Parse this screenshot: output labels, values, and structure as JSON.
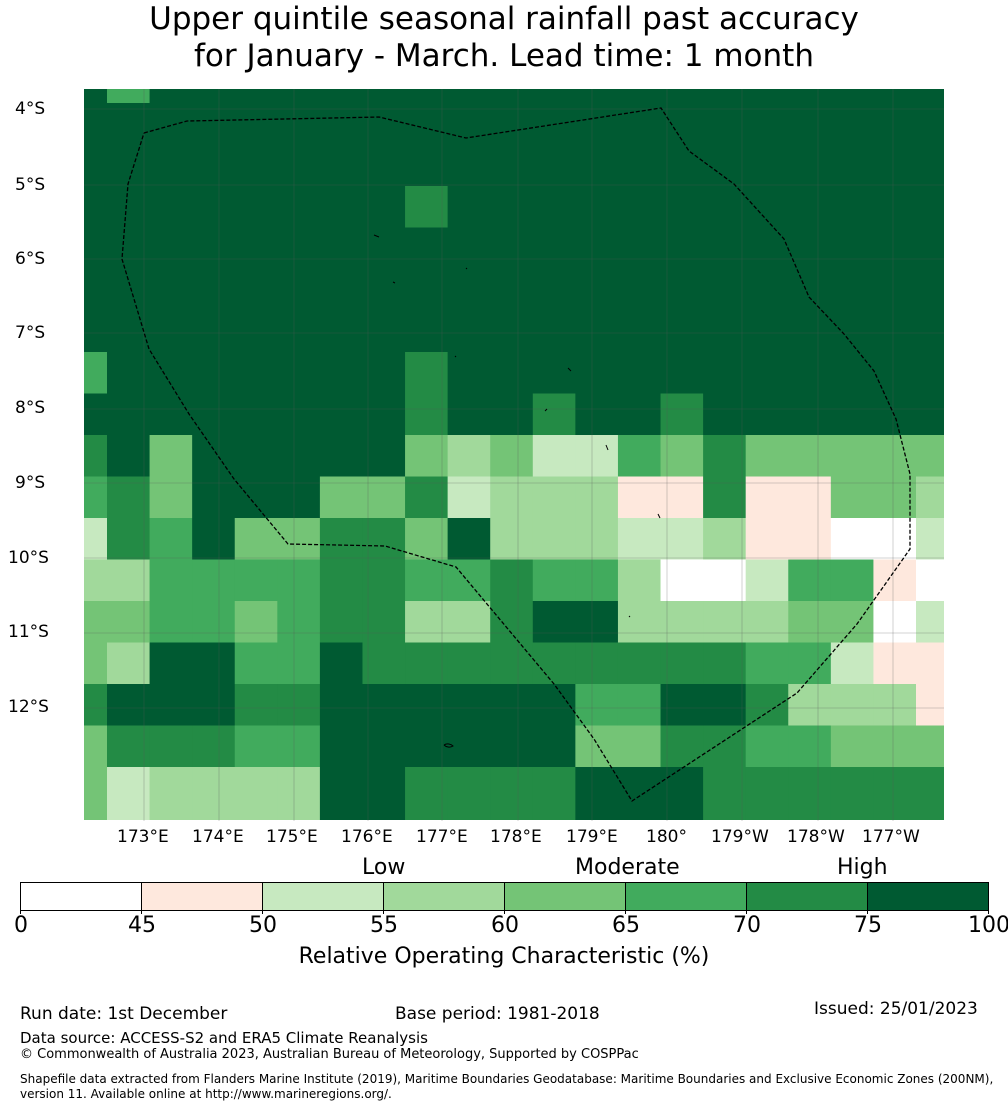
{
  "title_lines": [
    "Upper quintile seasonal rainfall past accuracy",
    "for January - March. Lead time: 1 month"
  ],
  "map": {
    "lat_labels": [
      "4°S",
      "5°S",
      "6°S",
      "7°S",
      "8°S",
      "9°S",
      "10°S",
      "11°S",
      "12°S"
    ],
    "lon_labels": [
      "173°E",
      "174°E",
      "175°E",
      "176°E",
      "177°E",
      "178°E",
      "179°E",
      "180°",
      "179°W",
      "178°W",
      "177°W"
    ],
    "grid_values_pct": [
      [
        77,
        67,
        77,
        77,
        77,
        77,
        77,
        77,
        77,
        77,
        77,
        77,
        77,
        77,
        77,
        77,
        77,
        77,
        77,
        77,
        77
      ],
      [
        77,
        77,
        77,
        77,
        77,
        77,
        77,
        77,
        77,
        77,
        77,
        77,
        77,
        77,
        77,
        77,
        77,
        77,
        77,
        77,
        77
      ],
      [
        77,
        77,
        77,
        77,
        77,
        77,
        77,
        77,
        77,
        77,
        77,
        77,
        77,
        77,
        77,
        77,
        77,
        77,
        77,
        77,
        77
      ],
      [
        77,
        77,
        77,
        77,
        77,
        77,
        77,
        77,
        72,
        77,
        77,
        77,
        77,
        77,
        77,
        77,
        77,
        77,
        77,
        77,
        77
      ],
      [
        77,
        77,
        77,
        77,
        77,
        77,
        77,
        77,
        77,
        77,
        77,
        77,
        77,
        77,
        77,
        77,
        77,
        77,
        77,
        77,
        77
      ],
      [
        77,
        77,
        77,
        77,
        77,
        77,
        77,
        77,
        77,
        77,
        77,
        77,
        77,
        77,
        77,
        77,
        77,
        77,
        77,
        77,
        77
      ],
      [
        77,
        77,
        77,
        77,
        77,
        77,
        77,
        77,
        77,
        77,
        77,
        77,
        77,
        77,
        77,
        77,
        77,
        77,
        77,
        77,
        77
      ],
      [
        67,
        77,
        77,
        77,
        77,
        77,
        77,
        77,
        72,
        77,
        77,
        77,
        77,
        77,
        77,
        77,
        77,
        77,
        77,
        77,
        77
      ],
      [
        77,
        77,
        77,
        77,
        77,
        77,
        77,
        77,
        72,
        77,
        77,
        72,
        77,
        77,
        72,
        77,
        77,
        77,
        77,
        77,
        77
      ],
      [
        72,
        77,
        62,
        77,
        77,
        77,
        77,
        77,
        62,
        57,
        62,
        52,
        52,
        67,
        62,
        72,
        62,
        62,
        62,
        62,
        62
      ],
      [
        67,
        72,
        62,
        77,
        77,
        77,
        62,
        62,
        72,
        52,
        57,
        57,
        57,
        47,
        47,
        72,
        47,
        47,
        62,
        62,
        57
      ],
      [
        52,
        72,
        67,
        77,
        62,
        62,
        72,
        72,
        62,
        77,
        57,
        57,
        57,
        52,
        52,
        57,
        47,
        47,
        42,
        42,
        52
      ],
      [
        57,
        57,
        67,
        67,
        67,
        67,
        72,
        72,
        67,
        67,
        72,
        67,
        67,
        57,
        42,
        42,
        52,
        67,
        67,
        47,
        42
      ],
      [
        62,
        62,
        67,
        67,
        62,
        67,
        72,
        72,
        57,
        57,
        72,
        77,
        77,
        57,
        57,
        57,
        57,
        62,
        62,
        42,
        52
      ],
      [
        62,
        57,
        77,
        77,
        67,
        67,
        77,
        72,
        72,
        72,
        72,
        72,
        72,
        72,
        72,
        72,
        67,
        67,
        52,
        47,
        47
      ],
      [
        72,
        77,
        77,
        77,
        72,
        72,
        77,
        77,
        77,
        77,
        77,
        77,
        67,
        67,
        77,
        77,
        72,
        57,
        57,
        57,
        47
      ],
      [
        62,
        72,
        72,
        72,
        67,
        67,
        77,
        77,
        77,
        77,
        77,
        77,
        62,
        62,
        72,
        72,
        67,
        67,
        62,
        62,
        62
      ],
      [
        62,
        52,
        57,
        57,
        57,
        57,
        77,
        77,
        72,
        72,
        72,
        72,
        77,
        77,
        77,
        72,
        72,
        72,
        72,
        72,
        72
      ]
    ]
  },
  "colorbar": {
    "categories": [
      "Low",
      "Moderate",
      "High"
    ],
    "ticks": [
      "0",
      "45",
      "50",
      "55",
      "60",
      "65",
      "70",
      "75",
      "100"
    ],
    "colors": [
      "#ffffff",
      "#fee8dd",
      "#c7e9c0",
      "#a1d99b",
      "#74c476",
      "#41ab5d",
      "#238b45",
      "#005a32"
    ],
    "label": "Relative Operating Characteristic (%)"
  },
  "footer": {
    "run_date": "Run date: 1st December",
    "base_period": "Base period: 1981-2018",
    "issued": "Issued: 25/01/2023",
    "data_source": "Data source: ACCESS-S2 and ERA5 Climate Reanalysis",
    "copyright": "© Commonwealth of Australia 2023, Australian Bureau of Meteorology, Supported by COSPPac",
    "shapefile_line1": "Shapefile data extracted from Flanders Marine Institute (2019), Maritime Boundaries Geodatabase: Maritime Boundaries and Exclusive Economic Zones (200NM),",
    "shapefile_line2": "version 11. Available online at http://www.marineregions.org/."
  }
}
